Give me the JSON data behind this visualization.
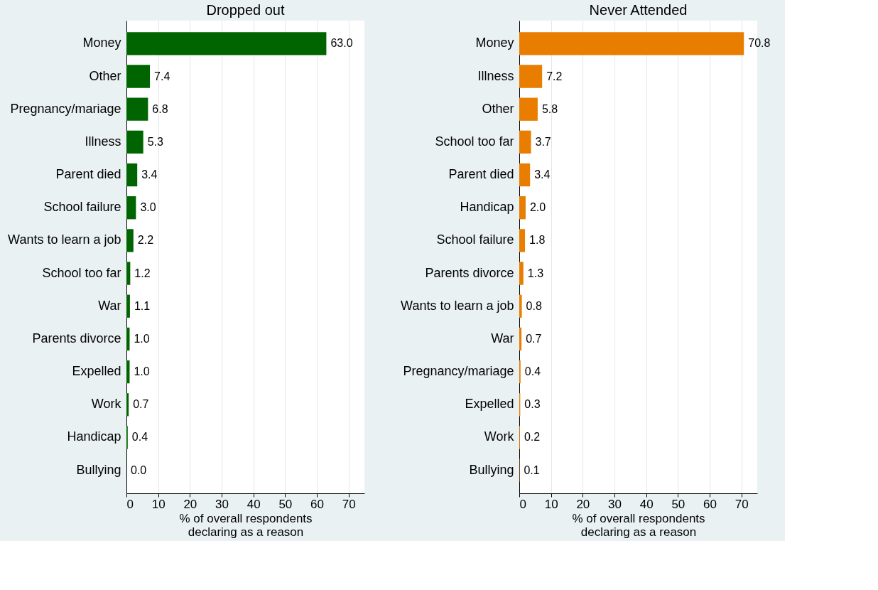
{
  "chart_data": [
    {
      "type": "bar",
      "orientation": "horizontal",
      "title": "Dropped out",
      "xlabel": "% of overall respondents\ndeclaring as a reason",
      "categories": [
        "Money",
        "Other",
        "Pregnancy/mariage",
        "Illness",
        "Parent died",
        "School failure",
        "Wants to learn a job",
        "School too far",
        "War",
        "Parents divorce",
        "Expelled",
        "Work",
        "Handicap",
        "Bullying"
      ],
      "values": [
        63.0,
        7.4,
        6.8,
        5.3,
        3.4,
        3.0,
        2.2,
        1.2,
        1.1,
        1.0,
        1.0,
        0.7,
        0.4,
        0.0
      ],
      "value_labels": [
        "63.0",
        "7.4",
        "6.8",
        "5.3",
        "3.4",
        "3.0",
        "2.2",
        "1.2",
        "1.1",
        "1.0",
        "1.0",
        "0.7",
        "0.4",
        "0.0"
      ],
      "color": "#006400",
      "xlim": [
        0,
        75
      ],
      "xticks": [
        0,
        10,
        20,
        30,
        40,
        50,
        60,
        70
      ],
      "grid": "x"
    },
    {
      "type": "bar",
      "orientation": "horizontal",
      "title": "Never Attended",
      "xlabel": "% of overall respondents\ndeclaring as a reason",
      "categories": [
        "Money",
        "Illness",
        "Other",
        "School too far",
        "Parent died",
        "Handicap",
        "School failure",
        "Parents divorce",
        "Wants to learn a job",
        "War",
        "Pregnancy/mariage",
        "Expelled",
        "Work",
        "Bullying"
      ],
      "values": [
        70.8,
        7.2,
        5.8,
        3.7,
        3.4,
        2.0,
        1.8,
        1.3,
        0.8,
        0.7,
        0.4,
        0.3,
        0.2,
        0.1
      ],
      "value_labels": [
        "70.8",
        "7.2",
        "5.8",
        "3.7",
        "3.4",
        "2.0",
        "1.8",
        "1.3",
        "0.8",
        "0.7",
        "0.4",
        "0.3",
        "0.2",
        "0.1"
      ],
      "color": "#e87d00",
      "xlim": [
        0,
        75
      ],
      "xticks": [
        0,
        10,
        20,
        30,
        40,
        50,
        60,
        70
      ],
      "grid": "x"
    }
  ]
}
